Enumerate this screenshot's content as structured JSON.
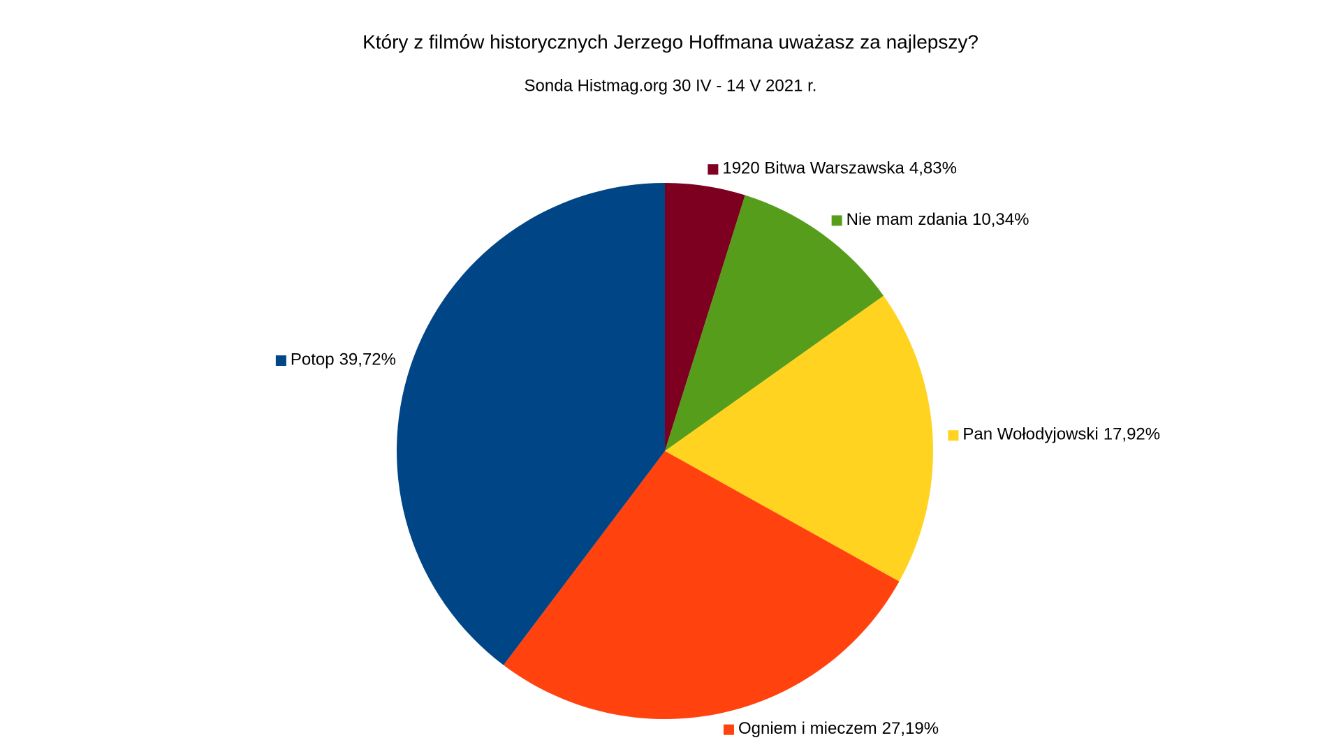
{
  "chart_data": {
    "type": "pie",
    "title": "Który z filmów historycznych Jerzego Hoffmana uważasz za najlepszy?",
    "subtitle": "Sonda Histmag.org 30 IV - 14 V 2021 r.",
    "categories": [
      "1920 Bitwa Warszawska",
      "Nie mam zdania",
      "Pan Wołodyjowski",
      "Ogniem i mieczem",
      "Potop"
    ],
    "values": [
      4.83,
      10.34,
      17.92,
      27.19,
      39.72
    ],
    "value_labels": [
      "4,83%",
      "10,34%",
      "17,92%",
      "27,19%",
      "39,72%"
    ],
    "colors": [
      "#7e0021",
      "#579d1c",
      "#ffd320",
      "#ff420e",
      "#004586"
    ]
  }
}
